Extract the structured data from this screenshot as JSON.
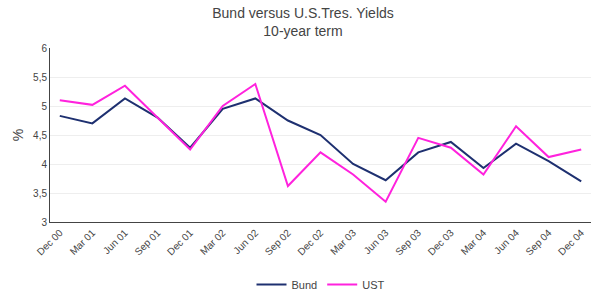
{
  "chart_data": {
    "type": "line",
    "title": "Bund versus U.S.Tres. Yields",
    "subtitle": "10-year term",
    "y_label": "%",
    "categories": [
      "Dec 00",
      "Mar 01",
      "Jun 01",
      "Sep 01",
      "Dec 01",
      "Mar 02",
      "Jun 02",
      "Sep 02",
      "Dec 02",
      "Mar 03",
      "Jun 03",
      "Sep 03",
      "Dec 03",
      "Mar 04",
      "Jun 04",
      "Sep 04",
      "Dec 04"
    ],
    "series": [
      {
        "name": "Bund",
        "color": "#1e3070",
        "values": [
          4.83,
          4.7,
          5.13,
          4.8,
          4.28,
          4.95,
          5.13,
          4.75,
          4.5,
          4.0,
          3.72,
          4.2,
          4.38,
          3.93,
          4.35,
          4.05,
          3.7
        ]
      },
      {
        "name": "UST",
        "color": "#ff22dd",
        "values": [
          5.1,
          5.02,
          5.35,
          4.8,
          4.25,
          5.0,
          5.38,
          3.62,
          4.2,
          3.82,
          3.35,
          4.45,
          4.28,
          3.82,
          4.65,
          4.12,
          4.25
        ]
      }
    ],
    "ylim": [
      3.0,
      6.0
    ],
    "yticks": [
      3,
      {
        "value": 3.5,
        "label": "3,5"
      },
      4,
      {
        "value": 4.5,
        "label": "4,5"
      },
      5,
      {
        "value": 5.5,
        "label": "5,5"
      },
      6
    ],
    "grid": "y",
    "legend": "bottom"
  }
}
